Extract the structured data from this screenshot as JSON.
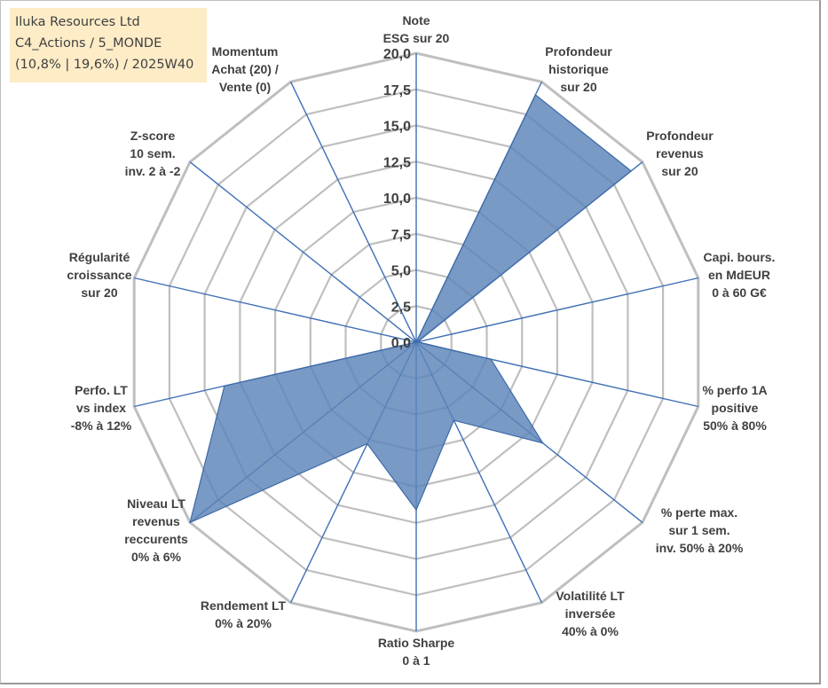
{
  "info_box": {
    "company": "Iluka Resources Ltd",
    "portfolio": "C4_Actions / 5_MONDE",
    "stats": "(10,8% | 19,6%) / 2025W40"
  },
  "colors": {
    "fill": "#5b84b8",
    "edge": "#3d6aa8",
    "spoke": "#3f6fb5",
    "grid": "#bfbfbf",
    "info_bg": "#fdecc6",
    "text": "#404040"
  },
  "chart_data": {
    "type": "radar",
    "title": "",
    "rmin": 0,
    "rmax": 20,
    "ticks": [
      "0,0",
      "2,5",
      "5,0",
      "7,5",
      "10,0",
      "12,5",
      "15,0",
      "17,5",
      "20,0"
    ],
    "tick_values": [
      0,
      2.5,
      5,
      7.5,
      10,
      12.5,
      15,
      17.5,
      20
    ],
    "categories": [
      [
        "Note",
        "ESG sur 20"
      ],
      [
        "Profondeur",
        "historique",
        "sur 20"
      ],
      [
        "Profondeur",
        "revenus",
        "sur 20"
      ],
      [
        "Capi. bours.",
        "en MdEUR",
        "0 à 60 G€"
      ],
      [
        "% perfo 1A",
        "positive",
        "50% à 80%"
      ],
      [
        "% perte max.",
        "sur 1 sem.",
        "inv. 50% à 20%"
      ],
      [
        "Volatilité LT",
        "inversée",
        "40% à 0%"
      ],
      [
        "Ratio Sharpe",
        "0 à 1"
      ],
      [
        "Rendement LT",
        "0% à 20%"
      ],
      [
        "Niveau LT",
        "revenus",
        "reccurents",
        "0% à 6%"
      ],
      [
        "Perfo. LT",
        "vs index",
        "-8% à 12%"
      ],
      [
        "Régularité",
        "croissance",
        "sur 20"
      ],
      [
        "Z-score",
        "10 sem.",
        "inv. 2 à -2"
      ],
      [
        "Momentum",
        "Achat (20) /",
        "Vente (0)"
      ]
    ],
    "series": [
      {
        "name": "Iluka Resources Ltd",
        "values": [
          0,
          19,
          19,
          0.1,
          5.3,
          11.2,
          6.0,
          11.6,
          7.8,
          20.0,
          13.6,
          0,
          0,
          0
        ]
      }
    ]
  }
}
